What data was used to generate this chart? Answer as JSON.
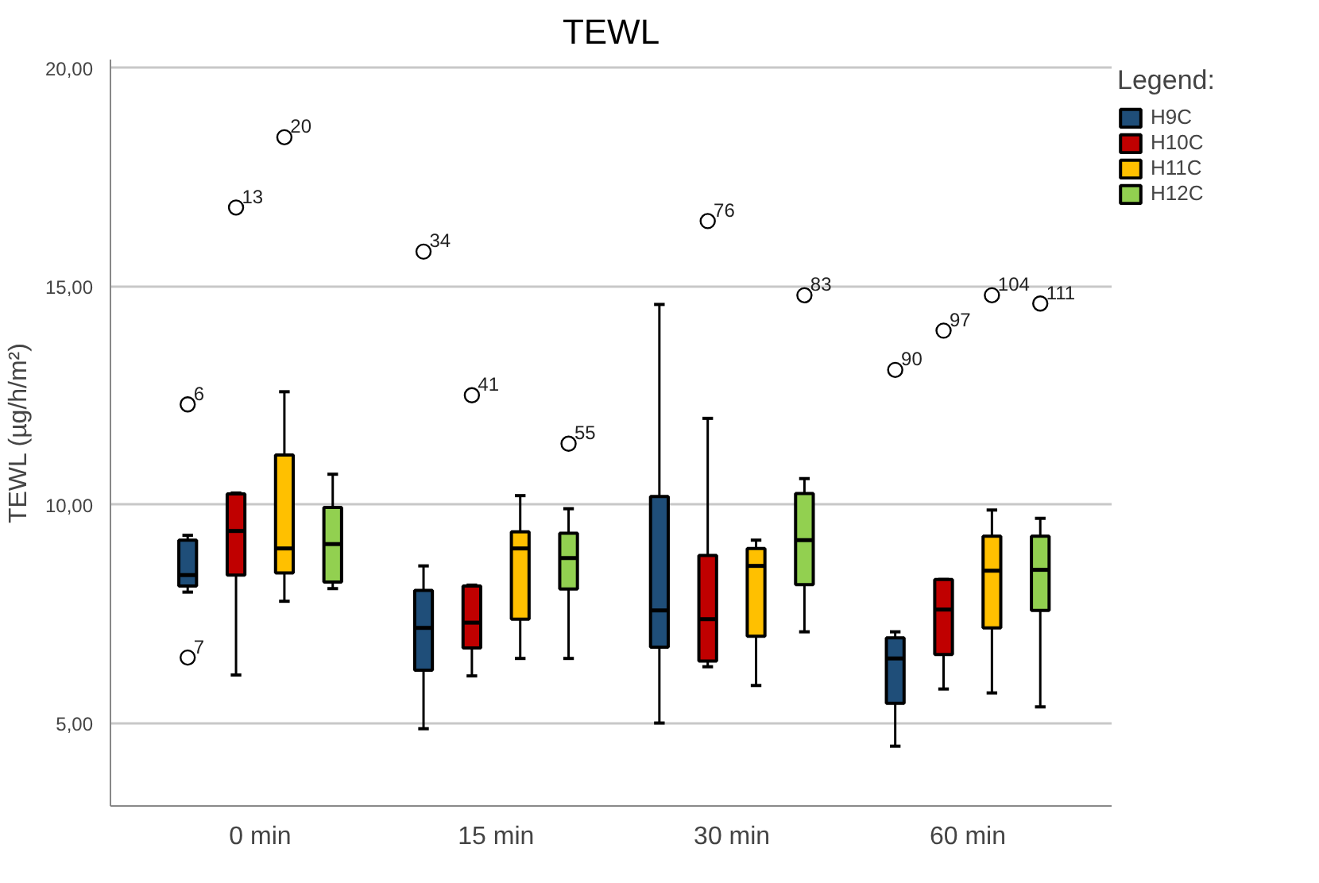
{
  "chart_data": {
    "type": "box",
    "title": "TEWL",
    "ylabel": "TEWL (µg/h/m²)",
    "legend_title": "Legend:",
    "legend": "top right",
    "grid": "y",
    "categories": [
      "0 min",
      "15 min",
      "30 min",
      "60 min"
    ],
    "ylim": [
      3.1,
      20.2
    ],
    "yticks": [
      {
        "value": 5,
        "label": "5,00"
      },
      {
        "value": 10,
        "label": "10,00"
      },
      {
        "value": 15,
        "label": "15,00"
      },
      {
        "value": 20,
        "label": "20,00"
      }
    ],
    "series": [
      {
        "name": "H9C",
        "color": "#1f4e79",
        "boxes": [
          {
            "low": 8.0,
            "q1": 8.14,
            "median": 8.39,
            "q3": 9.19,
            "high": 9.3,
            "outliers": [
              12.3,
              6.5
            ]
          },
          {
            "low": 4.87,
            "q1": 6.21,
            "median": 7.18,
            "q3": 8.04,
            "high": 8.6,
            "outliers": [
              15.8
            ]
          },
          {
            "low": 5.0,
            "q1": 6.74,
            "median": 7.58,
            "q3": 10.19,
            "high": 14.59
          },
          {
            "low": 4.47,
            "q1": 5.45,
            "median": 6.48,
            "q3": 6.95,
            "high": 7.09,
            "outliers": [
              13.09
            ]
          }
        ]
      },
      {
        "name": "H10C",
        "color": "#c00000",
        "boxes": [
          {
            "low": 6.1,
            "q1": 8.39,
            "median": 9.4,
            "q3": 10.25,
            "high": 10.27,
            "outliers": [
              16.81
            ]
          },
          {
            "low": 6.08,
            "q1": 6.72,
            "median": 7.3,
            "q3": 8.14,
            "high": 8.16,
            "outliers": [
              12.51
            ]
          },
          {
            "low": 6.29,
            "q1": 6.42,
            "median": 7.38,
            "q3": 8.84,
            "high": 11.98,
            "outliers": [
              16.5
            ]
          },
          {
            "low": 5.78,
            "q1": 6.57,
            "median": 7.6,
            "q3": 8.29,
            "high": 8.29,
            "outliers": [
              13.99
            ]
          }
        ]
      },
      {
        "name": "H11C",
        "color": "#ffc000",
        "boxes": [
          {
            "low": 7.79,
            "q1": 8.44,
            "median": 9.0,
            "q3": 11.14,
            "high": 12.59,
            "outliers": [
              18.42
            ]
          },
          {
            "low": 6.48,
            "q1": 7.38,
            "median": 9.0,
            "q3": 9.38,
            "high": 10.21
          },
          {
            "low": 5.86,
            "q1": 6.99,
            "median": 8.6,
            "q3": 9.0,
            "high": 9.19
          },
          {
            "low": 5.69,
            "q1": 7.18,
            "median": 8.49,
            "q3": 9.28,
            "high": 9.88,
            "outliers": [
              14.8
            ]
          }
        ]
      },
      {
        "name": "H12C",
        "color": "#92d050",
        "boxes": [
          {
            "low": 8.08,
            "q1": 8.23,
            "median": 9.1,
            "q3": 9.94,
            "high": 10.7
          },
          {
            "low": 6.48,
            "q1": 8.07,
            "median": 8.78,
            "q3": 9.35,
            "high": 9.91,
            "outliers": [
              11.4
            ]
          },
          {
            "low": 7.09,
            "q1": 8.17,
            "median": 9.19,
            "q3": 10.26,
            "high": 10.6,
            "outliers": [
              14.8
            ]
          },
          {
            "low": 5.37,
            "q1": 7.58,
            "median": 8.51,
            "q3": 9.28,
            "high": 9.69,
            "outliers": [
              14.61
            ]
          }
        ]
      }
    ],
    "annotations": [
      "6",
      "7",
      "13",
      "20",
      "34",
      "41",
      "55",
      "76",
      "83",
      "90",
      "97",
      "104",
      "111"
    ]
  }
}
